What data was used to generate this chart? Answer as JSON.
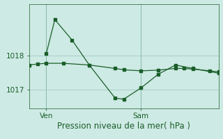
{
  "title": "Pression niveau de la mer( hPa )",
  "bg_color": "#ceeae4",
  "line_color": "#1a5e2a",
  "grid_color": "#a0ccc4",
  "yticks": [
    1017,
    1018
  ],
  "ylim": [
    1016.45,
    1019.45
  ],
  "xlim": [
    0,
    11
  ],
  "xtick_positions": [
    1.0,
    6.5
  ],
  "xtick_labels": [
    "Ven",
    "Sam"
  ],
  "line1_x": [
    0,
    0.5,
    1.0,
    2.0,
    3.5,
    5.0,
    5.5,
    6.5,
    7.5,
    8.5,
    9.0,
    9.5,
    10.5,
    11
  ],
  "line1_y": [
    1017.72,
    1017.75,
    1017.77,
    1017.77,
    1017.72,
    1017.62,
    1017.58,
    1017.55,
    1017.57,
    1017.62,
    1017.62,
    1017.6,
    1017.55,
    1017.52
  ],
  "line2_x": [
    1.0,
    1.5,
    2.5,
    3.5,
    5.0,
    5.5,
    6.5,
    7.5,
    8.5,
    9.5,
    11
  ],
  "line2_y": [
    1018.05,
    1019.05,
    1018.45,
    1017.72,
    1016.75,
    1016.72,
    1017.05,
    1017.45,
    1017.72,
    1017.62,
    1017.48
  ],
  "vline_x1": 1.0,
  "vline_x2": 6.5,
  "title_fontsize": 8.5,
  "tick_fontsize": 7.5
}
